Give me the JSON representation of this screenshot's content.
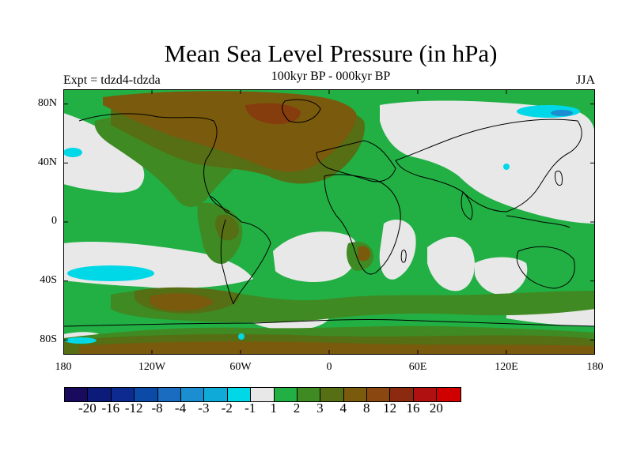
{
  "title": "Mean Sea Level Pressure (in hPa)",
  "subtitle": "100kyr BP - 000kyr BP",
  "left_string": "Expt = tdzd4-tdzda",
  "right_string": "JJA",
  "axes": {
    "lat_labels": [
      "80N",
      "40N",
      "0",
      "40S",
      "80S"
    ],
    "lon_labels": [
      "180",
      "120W",
      "60W",
      "0",
      "60E",
      "120E",
      "180"
    ]
  },
  "colorbar": {
    "colors": [
      "#1a0a5e",
      "#0c1a7a",
      "#0c2a90",
      "#0c4aa8",
      "#1a6cc0",
      "#1a8ed0",
      "#10aad8",
      "#00d8e8",
      "#e8e8e8",
      "#22b044",
      "#3f8a22",
      "#566e14",
      "#7a5a0c",
      "#8a4810",
      "#8c2a10",
      "#b01010",
      "#d00000"
    ],
    "labels": [
      "-20",
      "-16",
      "-12",
      "-8",
      "-4",
      "-3",
      "-2",
      "-1",
      "1",
      "2",
      "3",
      "4",
      "8",
      "12",
      "16",
      "20"
    ]
  },
  "map_colors": {
    "ocean_white": "#e8e8e8",
    "green": "#22b044",
    "dark_green": "#3f8a22",
    "olive": "#566e14",
    "brown": "#7a5a0c",
    "red_brown": "#8c2a10",
    "cyan": "#00d8e8",
    "light_blue": "#1a8ed0"
  }
}
